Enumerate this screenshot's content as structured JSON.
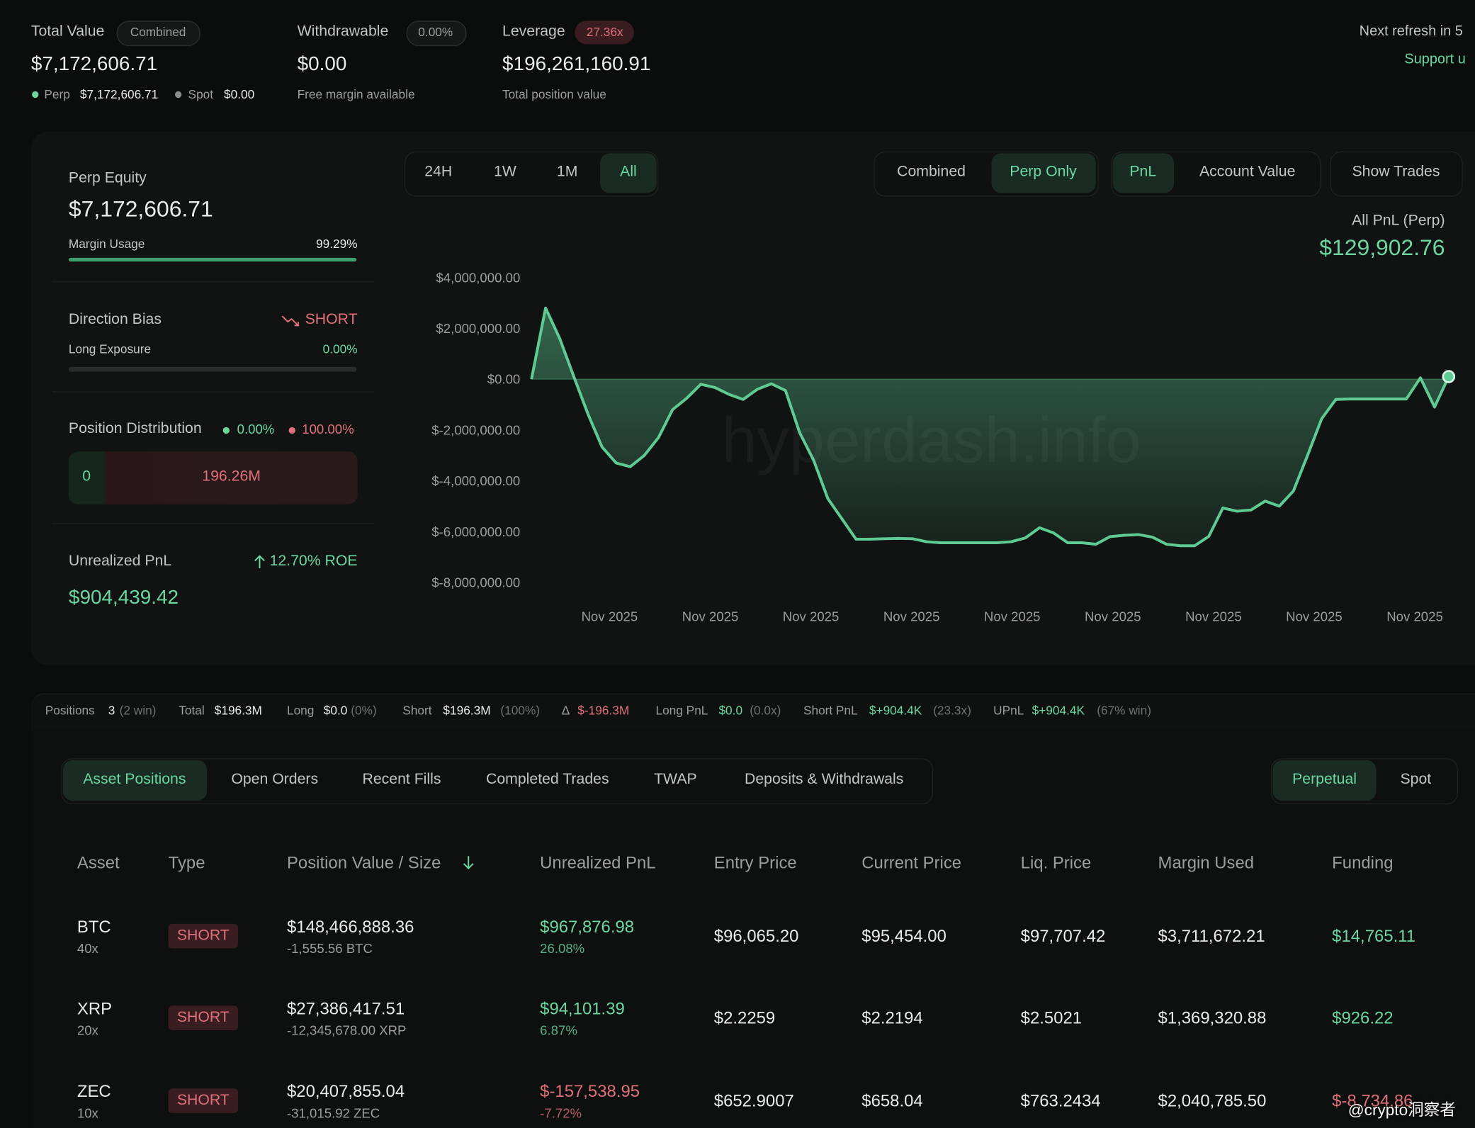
{
  "header": {
    "total_value_label": "Total Value",
    "combined_badge": "Combined",
    "total_value": "$7,172,606.71",
    "perp_label": "Perp",
    "perp_value": "$7,172,606.71",
    "spot_label": "Spot",
    "spot_value": "$0.00",
    "withdrawable_label": "Withdrawable",
    "withdrawable_badge": "0.00%",
    "withdrawable_value": "$0.00",
    "withdrawable_note": "Free margin available",
    "leverage_label": "Leverage",
    "leverage_badge": "27.36x",
    "leverage_value": "$196,261,160.91",
    "leverage_note": "Total position value",
    "refresh": "Next refresh in 5",
    "support": "Support u"
  },
  "left_panel": {
    "perp_equity_label": "Perp Equity",
    "perp_equity": "$7,172,606.71",
    "margin_usage_label": "Margin Usage",
    "margin_usage": "99.29%",
    "direction_label": "Direction Bias",
    "direction": "SHORT",
    "long_exposure_label": "Long Exposure",
    "long_exposure": "0.00%",
    "distribution_label": "Position Distribution",
    "distribution_long": "0.00%",
    "distribution_short": "100.00%",
    "distribution_left": "0",
    "distribution_right": "196.26M",
    "upnl_label": "Unrealized PnL",
    "roe": "12.70% ROE",
    "upnl": "$904,439.42"
  },
  "controls": {
    "ranges": [
      "24H",
      "1W",
      "1M",
      "All"
    ],
    "modes": [
      "Combined",
      "Perp Only"
    ],
    "metrics": [
      "PnL",
      "Account Value"
    ],
    "show_trades": "Show Trades"
  },
  "chart_data": {
    "type": "line",
    "title": "All PnL (Perp)",
    "total_label": "$129,902.76",
    "watermark": "hyperdash.info",
    "color": "#5ecb94",
    "grid": false,
    "xticks": [
      "Nov 2025",
      "Nov 2025",
      "Nov 2025",
      "Nov 2025",
      "Nov 2025",
      "Nov 2025",
      "Nov 2025",
      "Nov 2025",
      "Nov 2025"
    ],
    "ylim": [
      -8000000,
      4000000
    ],
    "yticks": [
      {
        "value": 4000000,
        "label": "$4,000,000.00"
      },
      {
        "value": 2000000,
        "label": "$2,000,000.00"
      },
      {
        "value": 0,
        "label": "$0.00"
      },
      {
        "value": -2000000,
        "label": "$-2,000,000.00"
      },
      {
        "value": -4000000,
        "label": "$-4,000,000.00"
      },
      {
        "value": -6000000,
        "label": "$-6,000,000.00"
      },
      {
        "value": -8000000,
        "label": "$-8,000,000.00"
      }
    ],
    "values": [
      0,
      2800000,
      1600000,
      100000,
      -1370000,
      -2670000,
      -3300000,
      -3450000,
      -3000000,
      -2300000,
      -1200000,
      -750000,
      -200000,
      -330000,
      -600000,
      -800000,
      -400000,
      -180000,
      -450000,
      -2100000,
      -3200000,
      -4700000,
      -5500000,
      -6300000,
      -6300000,
      -6280000,
      -6270000,
      -6280000,
      -6400000,
      -6440000,
      -6440000,
      -6440000,
      -6440000,
      -6440000,
      -6400000,
      -6250000,
      -5850000,
      -6050000,
      -6440000,
      -6440000,
      -6500000,
      -6200000,
      -6150000,
      -6120000,
      -6220000,
      -6500000,
      -6560000,
      -6560000,
      -6190000,
      -5070000,
      -5200000,
      -5150000,
      -4800000,
      -5000000,
      -4400000,
      -3000000,
      -1560000,
      -800000,
      -780000,
      -780000,
      -780000,
      -780000,
      -780000,
      50000,
      -1100000,
      100000
    ]
  },
  "summary": [
    {
      "label": "Positions",
      "value": "3",
      "note": "(2 win)"
    },
    {
      "label": "Total",
      "value": "$196.3M"
    },
    {
      "label": "Long",
      "value": "$0.0",
      "note": "(0%)"
    },
    {
      "label": "Short",
      "value": "$196.3M",
      "note": "(100%)"
    },
    {
      "label": "Δ",
      "value": "$-196.3M"
    },
    {
      "label": "Long PnL",
      "value": "$0.0",
      "note": "(0.0x)"
    },
    {
      "label": "Short PnL",
      "value": "$+904.4K",
      "note": "(23.3x)"
    },
    {
      "label": "UPnL",
      "value": "$+904.4K",
      "note": "(67% win)"
    }
  ],
  "tabs": [
    "Asset Positions",
    "Open Orders",
    "Recent Fills",
    "Completed Trades",
    "TWAP",
    "Deposits & Withdrawals"
  ],
  "market_tabs": [
    "Perpetual",
    "Spot"
  ],
  "table": {
    "headers": [
      "Asset",
      "Type",
      "Position Value / Size",
      "Unrealized PnL",
      "Entry Price",
      "Current Price",
      "Liq. Price",
      "Margin Used",
      "Funding"
    ],
    "rows": [
      {
        "asset": "BTC",
        "leverage": "40x",
        "type": "SHORT",
        "value": "$148,466,888.36",
        "size": "-1,555.56 BTC",
        "pnl": "$967,876.98",
        "pnl_pct": "26.08%",
        "entry": "$96,065.20",
        "current": "$95,454.00",
        "liq": "$97,707.42",
        "margin": "$3,711,672.21",
        "funding": "$14,765.11"
      },
      {
        "asset": "XRP",
        "leverage": "20x",
        "type": "SHORT",
        "value": "$27,386,417.51",
        "size": "-12,345,678.00 XRP",
        "pnl": "$94,101.39",
        "pnl_pct": "6.87%",
        "entry": "$2.2259",
        "current": "$2.2194",
        "liq": "$2.5021",
        "margin": "$1,369,320.88",
        "funding": "$926.22"
      },
      {
        "asset": "ZEC",
        "leverage": "10x",
        "type": "SHORT",
        "value": "$20,407,855.04",
        "size": "-31,015.92 ZEC",
        "pnl": "$-157,538.95",
        "pnl_pct": "-7.72%",
        "entry": "$652.9007",
        "current": "$658.04",
        "liq": "$763.2434",
        "margin": "$2,040,785.50",
        "funding": "$-8,734.86"
      }
    ]
  },
  "overlay_watermark": "@crypto洞察者"
}
